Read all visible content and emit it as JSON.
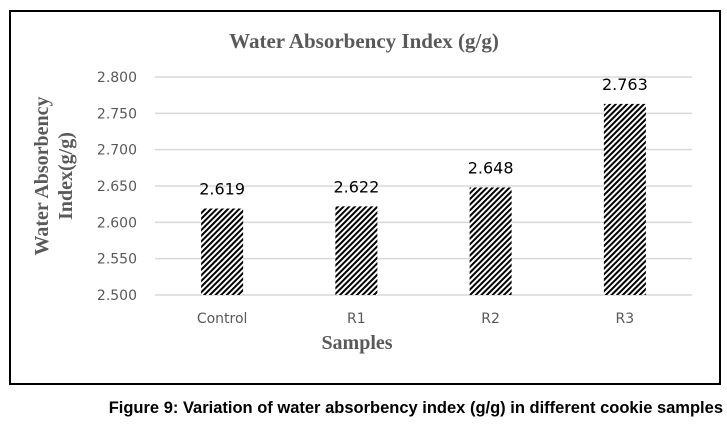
{
  "chart_data": {
    "type": "bar",
    "title": "Water Absorbency Index (g/g)",
    "xlabel": "Samples",
    "ylabel_lines": [
      "Water Absorbency",
      "Index(g/g)"
    ],
    "ylabel": "Water Absorbency Index(g/g)",
    "categories": [
      "Control",
      "R1",
      "R2",
      "R3"
    ],
    "values": [
      2.619,
      2.622,
      2.648,
      2.763
    ],
    "data_labels": [
      "2.619",
      "2.622",
      "2.648",
      "2.763"
    ],
    "ylim": [
      2.5,
      2.8
    ],
    "yticks": [
      2.5,
      2.55,
      2.6,
      2.65,
      2.7,
      2.75,
      2.8
    ],
    "ytick_labels": [
      "2.500",
      "2.550",
      "2.600",
      "2.650",
      "2.700",
      "2.750",
      "2.800"
    ],
    "grid": true,
    "legend": "none",
    "bar_fill": "diagonal-hatch",
    "colors": {
      "bar": "#000000",
      "grid": "#d9d9d9",
      "title": "#595959",
      "tick": "#595959"
    }
  },
  "caption": "Figure 9: Variation of water absorbency index (g/g) in different cookie samples"
}
